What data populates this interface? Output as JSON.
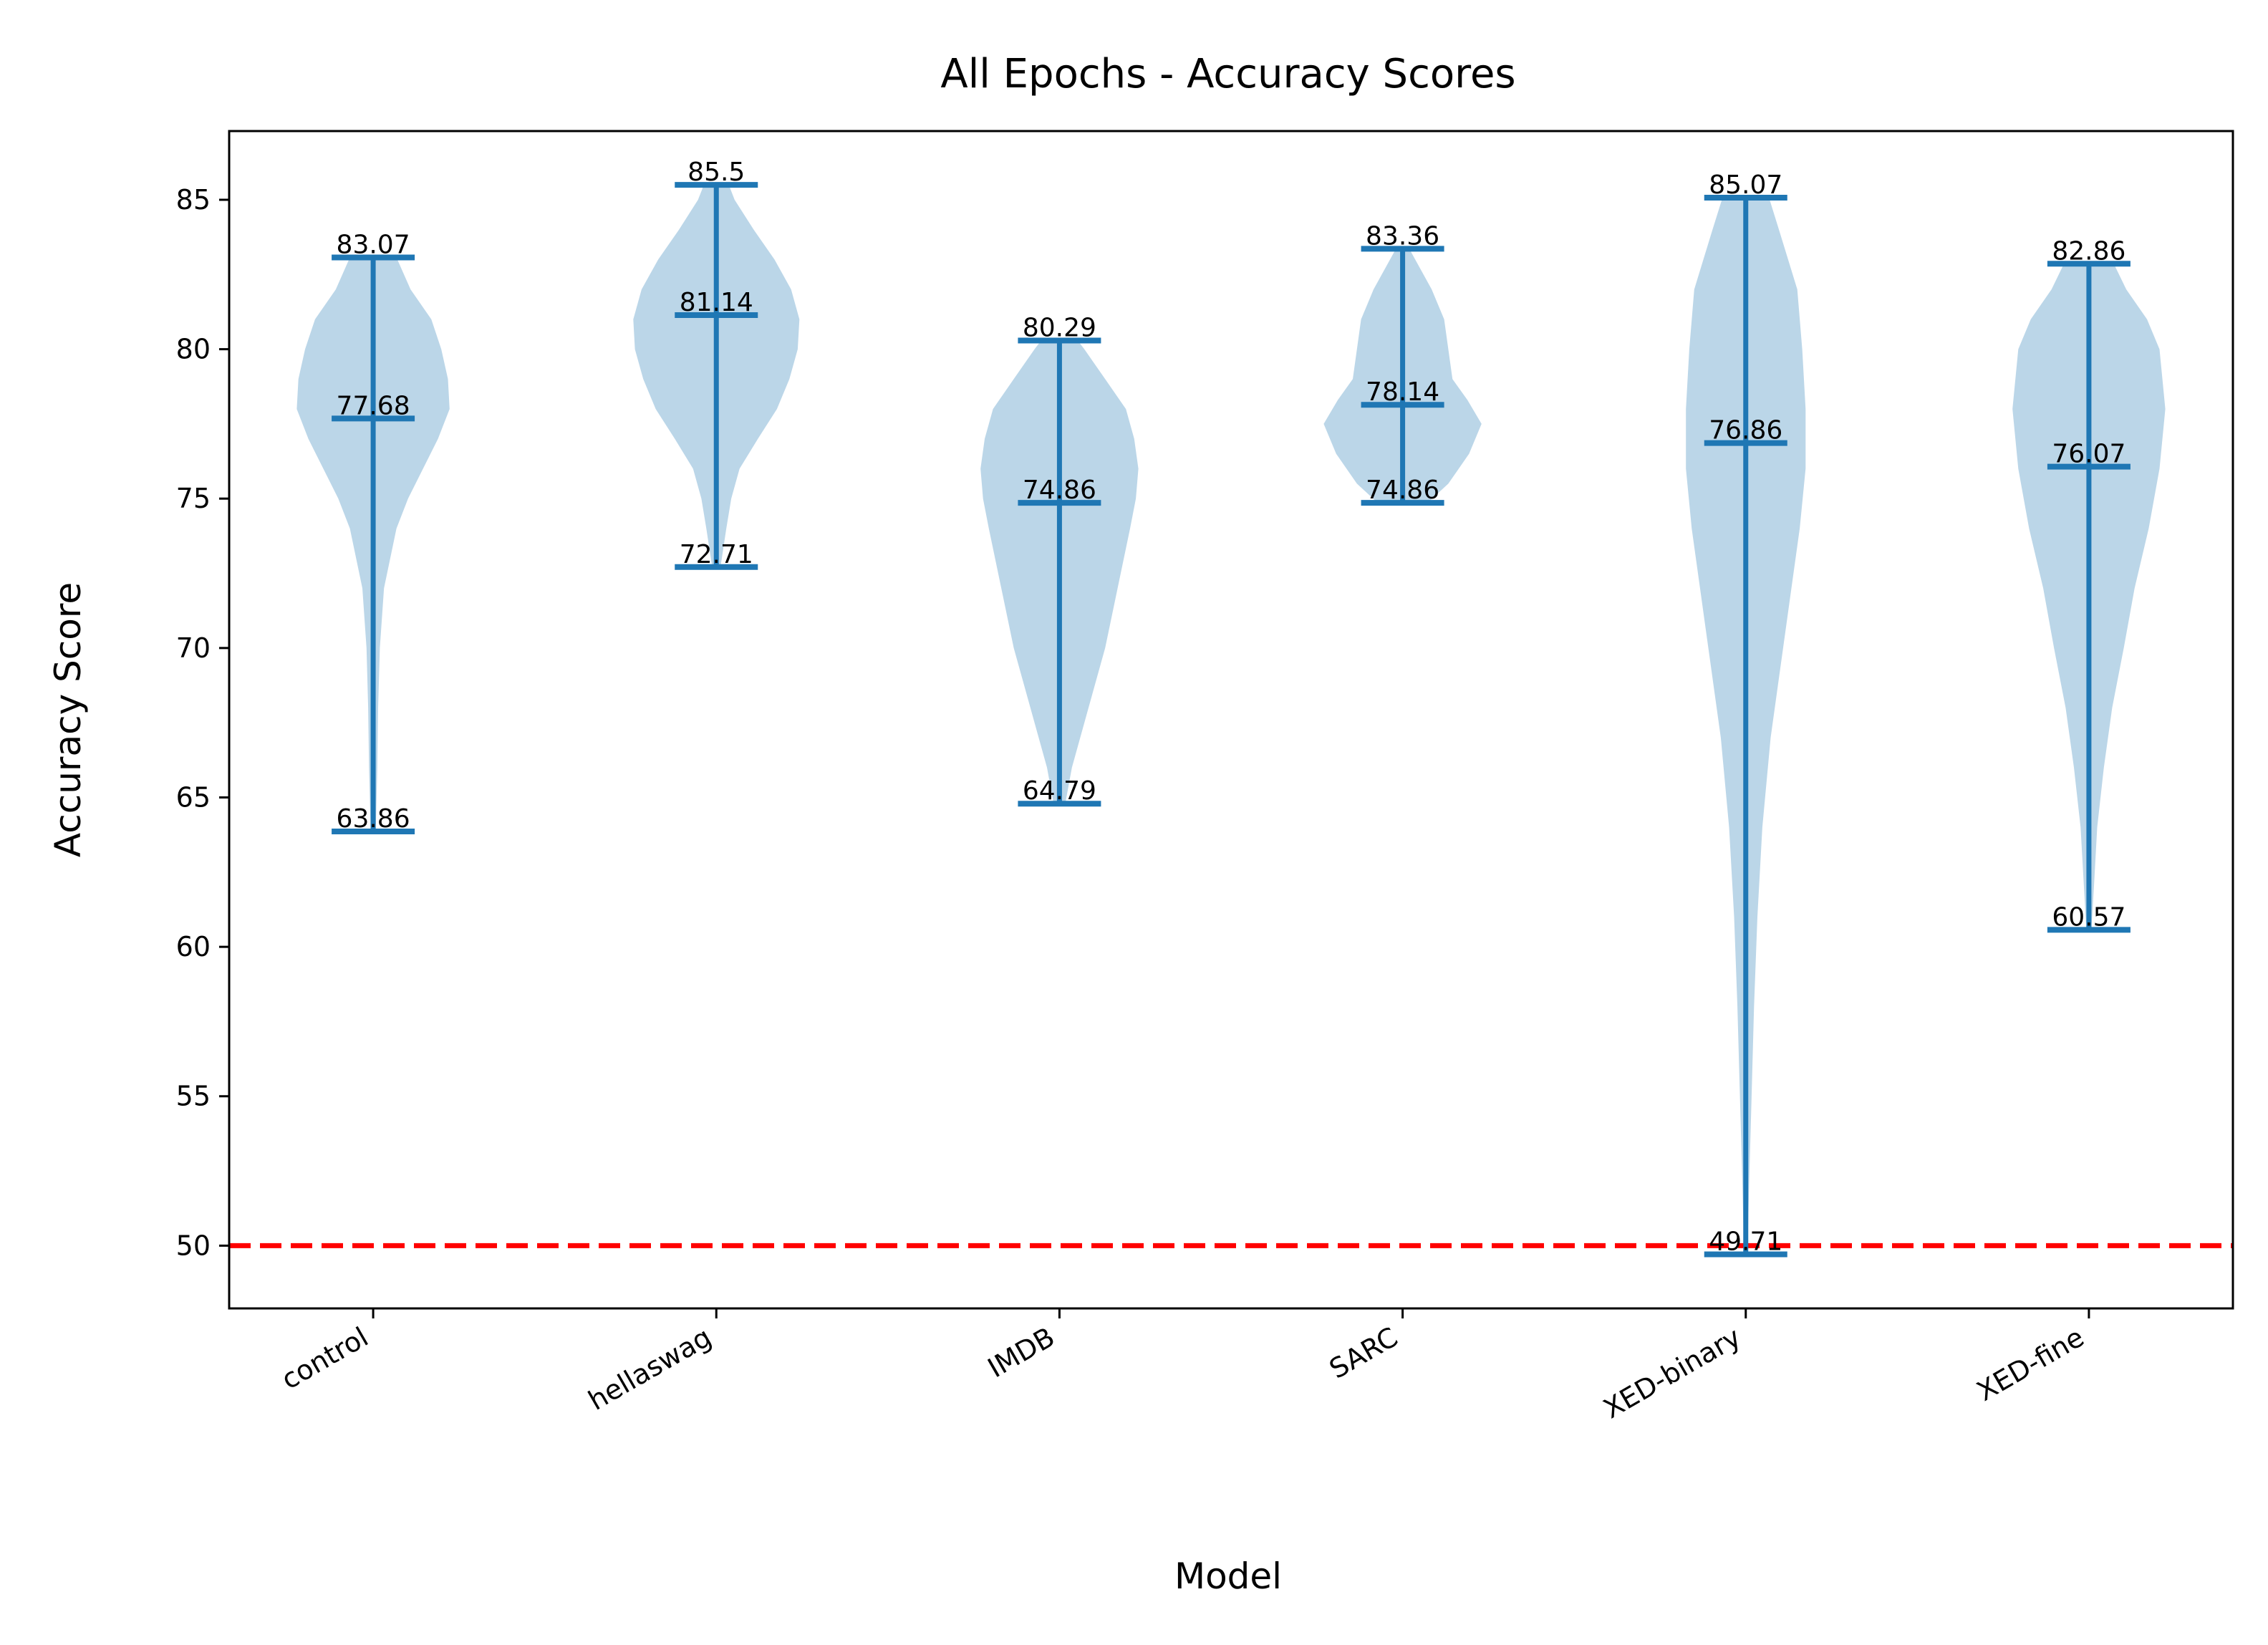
{
  "chart_data": {
    "type": "violin",
    "title": "All Epochs - Accuracy Scores",
    "xlabel": "Model",
    "ylabel": "Accuracy Score",
    "ylim": [
      47.9,
      87.3
    ],
    "yticks": [
      50,
      55,
      60,
      65,
      70,
      75,
      80,
      85
    ],
    "categories": [
      "control",
      "hellaswag",
      "IMDB",
      "SARC",
      "XED-binary",
      "XED-fine"
    ],
    "series": [
      {
        "category": "control",
        "min": 63.86,
        "median": 77.68,
        "max": 83.07,
        "labels": [
          "83.07",
          "77.68",
          "63.86"
        ],
        "density": [
          [
            63.86,
            0.03
          ],
          [
            66,
            0.05
          ],
          [
            68,
            0.06
          ],
          [
            70,
            0.08
          ],
          [
            72,
            0.13
          ],
          [
            74,
            0.28
          ],
          [
            75,
            0.42
          ],
          [
            76,
            0.6
          ],
          [
            77,
            0.78
          ],
          [
            78,
            0.92
          ],
          [
            79,
            0.9
          ],
          [
            80,
            0.82
          ],
          [
            81,
            0.7
          ],
          [
            82,
            0.45
          ],
          [
            83.07,
            0.28
          ]
        ]
      },
      {
        "category": "hellaswag",
        "min": 72.71,
        "median": 81.14,
        "max": 85.5,
        "labels": [
          "85.5",
          "81.14",
          "72.71"
        ],
        "density": [
          [
            72.71,
            0.05
          ],
          [
            74,
            0.12
          ],
          [
            75,
            0.18
          ],
          [
            76,
            0.28
          ],
          [
            77,
            0.5
          ],
          [
            78,
            0.73
          ],
          [
            79,
            0.88
          ],
          [
            80,
            0.98
          ],
          [
            81,
            1.0
          ],
          [
            82,
            0.9
          ],
          [
            83,
            0.7
          ],
          [
            84,
            0.45
          ],
          [
            85,
            0.22
          ],
          [
            85.5,
            0.15
          ]
        ]
      },
      {
        "category": "IMDB",
        "min": 64.79,
        "median": 74.86,
        "max": 80.29,
        "labels": [
          "80.29",
          "74.86",
          "64.79"
        ],
        "density": [
          [
            64.79,
            0.07
          ],
          [
            66,
            0.15
          ],
          [
            68,
            0.35
          ],
          [
            70,
            0.55
          ],
          [
            72,
            0.7
          ],
          [
            74,
            0.85
          ],
          [
            75,
            0.92
          ],
          [
            76,
            0.95
          ],
          [
            77,
            0.9
          ],
          [
            78,
            0.8
          ],
          [
            79,
            0.55
          ],
          [
            80,
            0.3
          ],
          [
            80.29,
            0.22
          ]
        ]
      },
      {
        "category": "SARC",
        "min": 74.86,
        "median": 78.14,
        "max": 83.36,
        "labels": [
          "83.36",
          "78.14",
          "74.86"
        ],
        "density": [
          [
            74.86,
            0.3
          ],
          [
            75.5,
            0.55
          ],
          [
            76.5,
            0.8
          ],
          [
            77.5,
            0.95
          ],
          [
            78.3,
            0.78
          ],
          [
            79,
            0.6
          ],
          [
            80,
            0.55
          ],
          [
            81,
            0.5
          ],
          [
            82,
            0.35
          ],
          [
            83.36,
            0.08
          ]
        ]
      },
      {
        "category": "XED-binary",
        "min": 49.71,
        "median": 76.86,
        "max": 85.07,
        "labels": [
          "85.07",
          "76.86",
          "49.71"
        ],
        "density": [
          [
            49.71,
            0.02
          ],
          [
            52,
            0.04
          ],
          [
            55,
            0.07
          ],
          [
            58,
            0.1
          ],
          [
            61,
            0.14
          ],
          [
            64,
            0.2
          ],
          [
            67,
            0.3
          ],
          [
            70,
            0.45
          ],
          [
            72,
            0.55
          ],
          [
            74,
            0.65
          ],
          [
            76,
            0.72
          ],
          [
            78,
            0.72
          ],
          [
            80,
            0.68
          ],
          [
            82,
            0.62
          ],
          [
            84,
            0.4
          ],
          [
            85.07,
            0.28
          ]
        ]
      },
      {
        "category": "XED-fine",
        "min": 60.57,
        "median": 76.07,
        "max": 82.86,
        "labels": [
          "82.86",
          "76.07",
          "60.57"
        ],
        "density": [
          [
            60.57,
            0.03
          ],
          [
            62,
            0.06
          ],
          [
            64,
            0.1
          ],
          [
            66,
            0.18
          ],
          [
            68,
            0.28
          ],
          [
            70,
            0.42
          ],
          [
            72,
            0.55
          ],
          [
            74,
            0.72
          ],
          [
            76,
            0.85
          ],
          [
            78,
            0.92
          ],
          [
            80,
            0.85
          ],
          [
            81,
            0.7
          ],
          [
            82,
            0.45
          ],
          [
            82.86,
            0.3
          ]
        ]
      }
    ],
    "reference_line": {
      "y": 50,
      "style": "dashed",
      "color": "#ff0000"
    },
    "colors": {
      "body": "#1f77b4",
      "body_opacity": 0.3,
      "lines": "#1f77b4"
    },
    "grid": false
  }
}
